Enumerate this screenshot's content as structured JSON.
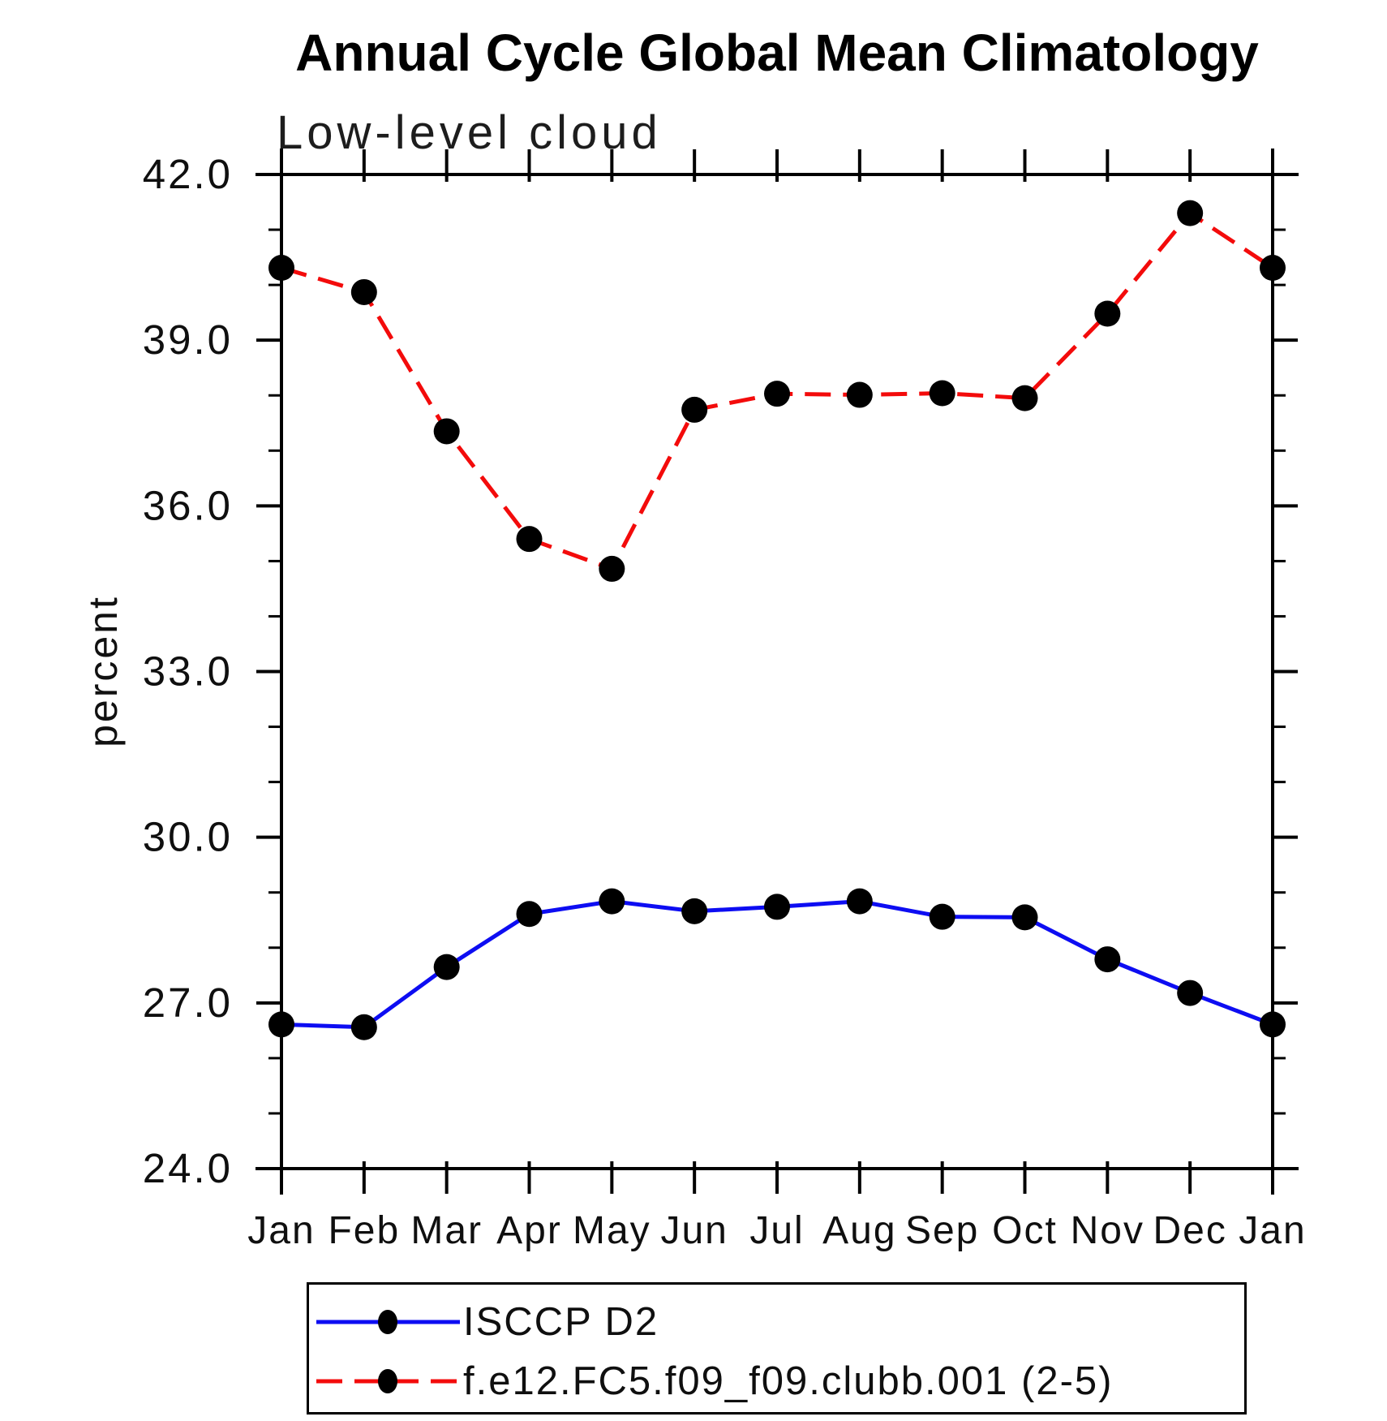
{
  "page": {
    "background": "#ffffff"
  },
  "header": {
    "title": "Annual Cycle Global Mean Climatology",
    "subtitle": "Low-level cloud"
  },
  "axes": {
    "ylabel": "percent"
  },
  "legend": {
    "entries": [
      {
        "label": "ISCCP D2"
      },
      {
        "label": "f.e12.FC5.f09_f09.clubb.001 (2-5)"
      }
    ]
  },
  "chart_data": {
    "type": "line",
    "title": "Annual Cycle Global Mean Climatology",
    "subtitle": "Low-level cloud",
    "xlabel": "",
    "ylabel": "percent",
    "categories": [
      "Jan",
      "Feb",
      "Mar",
      "Apr",
      "May",
      "Jun",
      "Jul",
      "Aug",
      "Sep",
      "Oct",
      "Nov",
      "Dec",
      "Jan"
    ],
    "ylim": [
      24.0,
      42.0
    ],
    "y_major_tick_step": 3.0,
    "y_minor_tick_step": 1.0,
    "y_tick_labels": [
      "24.0",
      "27.0",
      "30.0",
      "33.0",
      "36.0",
      "39.0",
      "42.0"
    ],
    "grid": false,
    "legend_position": "bottom",
    "axis_color": "#000000",
    "marker_radius": 16,
    "series": [
      {
        "name": "ISCCP D2",
        "line_style": "solid",
        "color": "#0d0df2",
        "marker": "filled-circle",
        "marker_color": "#000000",
        "values": [
          26.61,
          26.56,
          27.65,
          28.61,
          28.84,
          28.66,
          28.74,
          28.84,
          28.56,
          28.55,
          27.79,
          27.18,
          26.61
        ]
      },
      {
        "name": "f.e12.FC5.f09_f09.clubb.001 (2-5)",
        "line_style": "dashed",
        "color": "#f30b0b",
        "marker": "filled-circle",
        "marker_color": "#000000",
        "values": [
          40.31,
          39.87,
          37.35,
          35.4,
          34.86,
          37.74,
          38.03,
          38.01,
          38.04,
          37.95,
          39.48,
          41.3,
          40.31
        ]
      }
    ]
  }
}
